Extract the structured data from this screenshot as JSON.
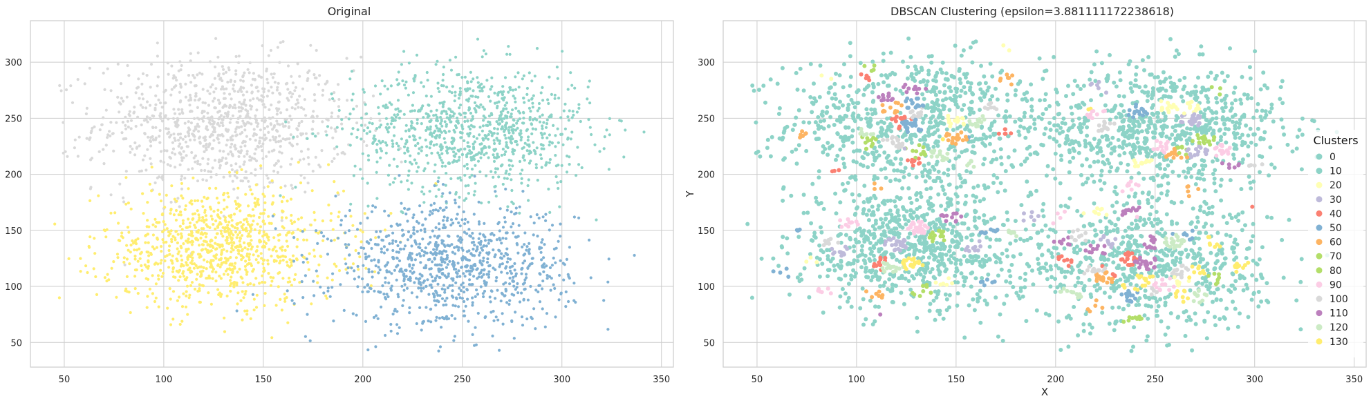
{
  "chart_data": [
    {
      "type": "scatter",
      "title": "Original",
      "xlabel": "",
      "ylabel": "",
      "xlim": [
        33,
        356
      ],
      "ylim": [
        28,
        337
      ],
      "xticks": [
        50,
        100,
        150,
        200,
        250,
        300,
        350
      ],
      "yticks": [
        50,
        100,
        150,
        200,
        250,
        300
      ],
      "grid": true,
      "series": [
        {
          "color": "#d9d9d9",
          "center": [
            130,
            245
          ],
          "spread": [
            32,
            30
          ],
          "approx_points": 950
        },
        {
          "color": "#8dd3c7",
          "center": [
            255,
            240
          ],
          "spread": [
            30,
            28
          ],
          "approx_points": 950
        },
        {
          "color": "#ffed6f",
          "center": [
            128,
            135
          ],
          "spread": [
            30,
            26
          ],
          "approx_points": 950
        },
        {
          "color": "#80b1d3",
          "center": [
            245,
            118
          ],
          "spread": [
            30,
            27
          ],
          "approx_points": 950
        }
      ]
    },
    {
      "type": "scatter",
      "title": "DBSCAN Clustering (epsilon=3.881111172238618)",
      "xlabel": "X",
      "ylabel": "Y",
      "xlim": [
        33,
        356
      ],
      "ylim": [
        28,
        337
      ],
      "xticks": [
        50,
        100,
        150,
        200,
        250,
        300,
        350
      ],
      "yticks": [
        50,
        100,
        150,
        200,
        250,
        300
      ],
      "grid": true,
      "legend": {
        "title": "Clusters",
        "placement": "center-right",
        "entries": [
          {
            "label": "0",
            "color": "#8dd3c7"
          },
          {
            "label": "10",
            "color": "#8dd3c7"
          },
          {
            "label": "20",
            "color": "#ffffb3"
          },
          {
            "label": "30",
            "color": "#bebada"
          },
          {
            "label": "40",
            "color": "#fb8072"
          },
          {
            "label": "50",
            "color": "#80b1d3"
          },
          {
            "label": "60",
            "color": "#fdb462"
          },
          {
            "label": "70",
            "color": "#b3de69"
          },
          {
            "label": "80",
            "color": "#b3de69"
          },
          {
            "label": "90",
            "color": "#fccde5"
          },
          {
            "label": "100",
            "color": "#d9d9d9"
          },
          {
            "label": "110",
            "color": "#bc80bd"
          },
          {
            "label": "120",
            "color": "#ccebc5"
          },
          {
            "label": "130",
            "color": "#ffed6f"
          }
        ]
      },
      "noise_color": "#8dd3c7",
      "small_cluster_colors": [
        "#ffffb3",
        "#bebada",
        "#fb8072",
        "#80b1d3",
        "#fdb462",
        "#b3de69",
        "#fccde5",
        "#d9d9d9",
        "#bc80bd",
        "#ccebc5",
        "#ffed6f"
      ]
    }
  ]
}
